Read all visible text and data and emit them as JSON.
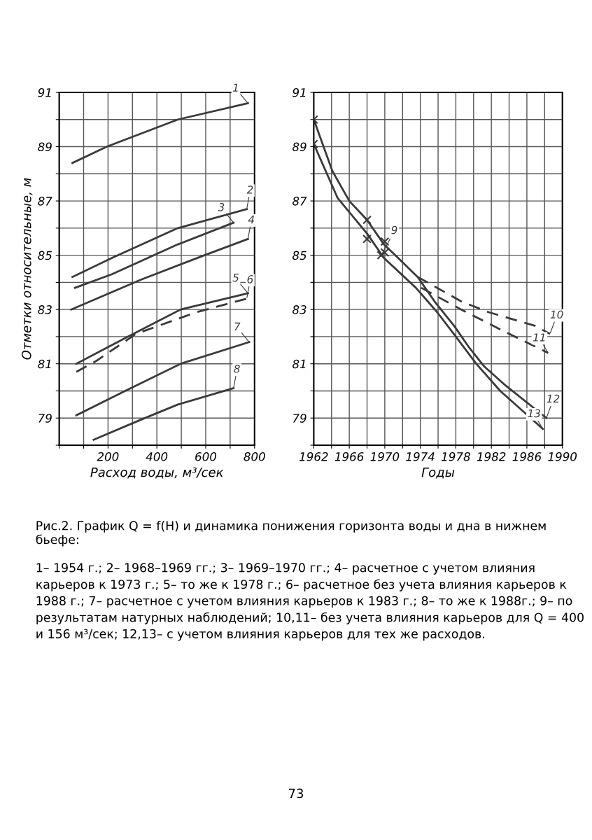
{
  "chart_data": [
    {
      "type": "line",
      "xlabel": "Расход воды, м³/сек",
      "ylabel": "Отметки относительные, м",
      "grid": true,
      "xlim": [
        0,
        800
      ],
      "ylim": [
        78,
        91
      ],
      "xticks": [
        {
          "value": 0,
          "label": null
        },
        {
          "value": 100,
          "label": null
        },
        200,
        {
          "value": 300,
          "label": null
        },
        400,
        {
          "value": 500,
          "label": null
        },
        600,
        {
          "value": 700,
          "label": null
        },
        800
      ],
      "yticks": [
        {
          "value": 78,
          "label": null
        },
        79,
        {
          "value": 80,
          "label": null
        },
        81,
        {
          "value": 82,
          "label": null
        },
        83,
        {
          "value": 84,
          "label": null
        },
        85,
        {
          "value": 86,
          "label": null
        },
        87,
        {
          "value": 88,
          "label": null
        },
        89,
        {
          "value": 90,
          "label": null
        },
        91
      ],
      "series": [
        {
          "name": "1",
          "color": "#3a3a3a",
          "x": [
            54,
            195,
            486,
            773
          ],
          "values": [
            88.4,
            89.0,
            90.0,
            90.6
          ]
        },
        {
          "name": "2",
          "color": "#3a3a3a",
          "x": [
            54,
            216,
            486,
            768
          ],
          "values": [
            84.2,
            84.9,
            86.0,
            86.7
          ]
        },
        {
          "name": "3",
          "color": "#3a3a3a",
          "x": [
            65,
            216,
            486,
            714
          ],
          "values": [
            83.8,
            84.3,
            85.4,
            86.2
          ]
        },
        {
          "name": "4",
          "color": "#3a3a3a",
          "x": [
            49,
            335,
            595,
            773
          ],
          "values": [
            83.0,
            84.1,
            85.0,
            85.6
          ]
        },
        {
          "name": "5",
          "color": "#3a3a3a",
          "x": [
            70,
            281,
            497,
            773
          ],
          "values": [
            81.0,
            82.0,
            83.0,
            83.6
          ]
        },
        {
          "name": "6",
          "color": "#3a3a3a",
          "line_style": "dashed",
          "x": [
            70,
            151,
            314,
            562,
            768
          ],
          "values": [
            80.7,
            81.1,
            82.1,
            82.9,
            83.4
          ]
        },
        {
          "name": "7",
          "color": "#3a3a3a",
          "x": [
            70,
            270,
            497,
            778
          ],
          "values": [
            79.1,
            80.0,
            81.0,
            81.8
          ]
        },
        {
          "name": "8",
          "color": "#3a3a3a",
          "x": [
            141,
            324,
            486,
            714
          ],
          "values": [
            78.2,
            78.9,
            79.5,
            80.1
          ]
        }
      ],
      "annotations": [
        "Рис.2. График Q = f(H) и динамика понижения горизонта воды и дна в нижнем бьефе:",
        "1– 1954 г.; 2– 1968–1969 гг.; 3– 1969–1970 гг.; 4– расчетное с учетом влияния карьеров к 1973 г.; 5– то же к 1978 г.; 6– расчетное без учета влияния карьеров к 1988 г.; 7– расчетное с учетом влияния карьеров к 1983 г.; 8– то же к 1988г.; 9– по результатам натурных наблюдений; 10,11– без учета влияния карьеров для Q = 400 и 156 м³/сек; 12,13– с учетом влияния карьеров для тех же расходов.",
        "73"
      ]
    },
    {
      "type": "line",
      "xlabel": "Годы",
      "grid": true,
      "xlim": [
        1962,
        1990
      ],
      "ylim": [
        78,
        91
      ],
      "xticks": [
        1962,
        {
          "value": 1964,
          "label": null
        },
        1966,
        {
          "value": 1968,
          "label": null
        },
        1970,
        {
          "value": 1972,
          "label": null
        },
        1974,
        {
          "value": 1976,
          "label": null
        },
        1978,
        {
          "value": 1980,
          "label": null
        },
        1982,
        {
          "value": 1984,
          "label": null
        },
        1986,
        {
          "value": 1988,
          "label": null
        },
        1990
      ],
      "yticks": [
        {
          "value": 78,
          "label": null
        },
        79,
        {
          "value": 80,
          "label": null
        },
        81,
        {
          "value": 82,
          "label": null
        },
        83,
        {
          "value": 84,
          "label": null
        },
        85,
        {
          "value": 86,
          "label": null
        },
        87,
        {
          "value": 88,
          "label": null
        },
        89,
        {
          "value": 90,
          "label": null
        },
        91
      ],
      "series": [
        {
          "name": "9",
          "type": "scatter",
          "marker": "cross",
          "color": "#3a3a3a",
          "x": [
            1962,
            1962,
            1968,
            1968,
            1970,
            1970,
            1969.6
          ],
          "values": [
            90.0,
            89.1,
            86.3,
            85.6,
            85.5,
            85.1,
            85.0
          ]
        },
        {
          "name": "10",
          "color": "#3a3a3a",
          "line_style": "dashed",
          "x": [
            1973.7,
            1978.6,
            1981.7,
            1986.9,
            1988.6
          ],
          "values": [
            84.2,
            83.3,
            82.9,
            82.4,
            82.1
          ]
        },
        {
          "name": "11",
          "color": "#3a3a3a",
          "line_style": "dashed",
          "x": [
            1974.1,
            1978.6,
            1983.4,
            1988.4
          ],
          "values": [
            83.8,
            83.0,
            82.2,
            81.4
          ]
        },
        {
          "name": "12",
          "color": "#3a3a3a",
          "x": [
            1962,
            1964.1,
            1966.0,
            1968.0,
            1969.9,
            1971.5,
            1973.7,
            1975.6,
            1977.8,
            1979.5,
            1981.2,
            1983.6,
            1988.2
          ],
          "values": [
            90.0,
            88.1,
            87.0,
            86.3,
            85.4,
            84.9,
            84.2,
            83.3,
            82.4,
            81.6,
            80.9,
            80.2,
            79.0
          ]
        },
        {
          "name": "13",
          "color": "#3a3a3a",
          "x": [
            1962,
            1964.7,
            1968.0,
            1969.9,
            1973.5,
            1975.9,
            1978.0,
            1980.3,
            1983.0,
            1987.8
          ],
          "values": [
            89.1,
            87.1,
            85.8,
            84.9,
            83.8,
            82.9,
            82.0,
            81.0,
            80.0,
            78.6
          ]
        }
      ]
    }
  ]
}
